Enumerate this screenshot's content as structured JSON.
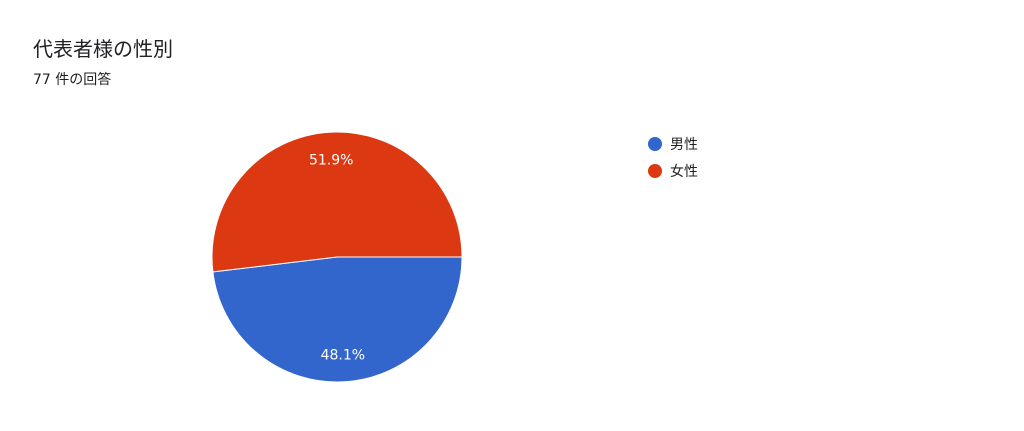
{
  "title": "代表者様の性別",
  "subtitle": "77 件の回答",
  "chart_data": {
    "type": "pie",
    "categories": [
      "男性",
      "女性"
    ],
    "values": [
      48.1,
      51.9
    ],
    "labels": [
      "48.1%",
      "51.9%"
    ],
    "colors": [
      "#3366cc",
      "#dc3912"
    ],
    "legend": "right"
  }
}
